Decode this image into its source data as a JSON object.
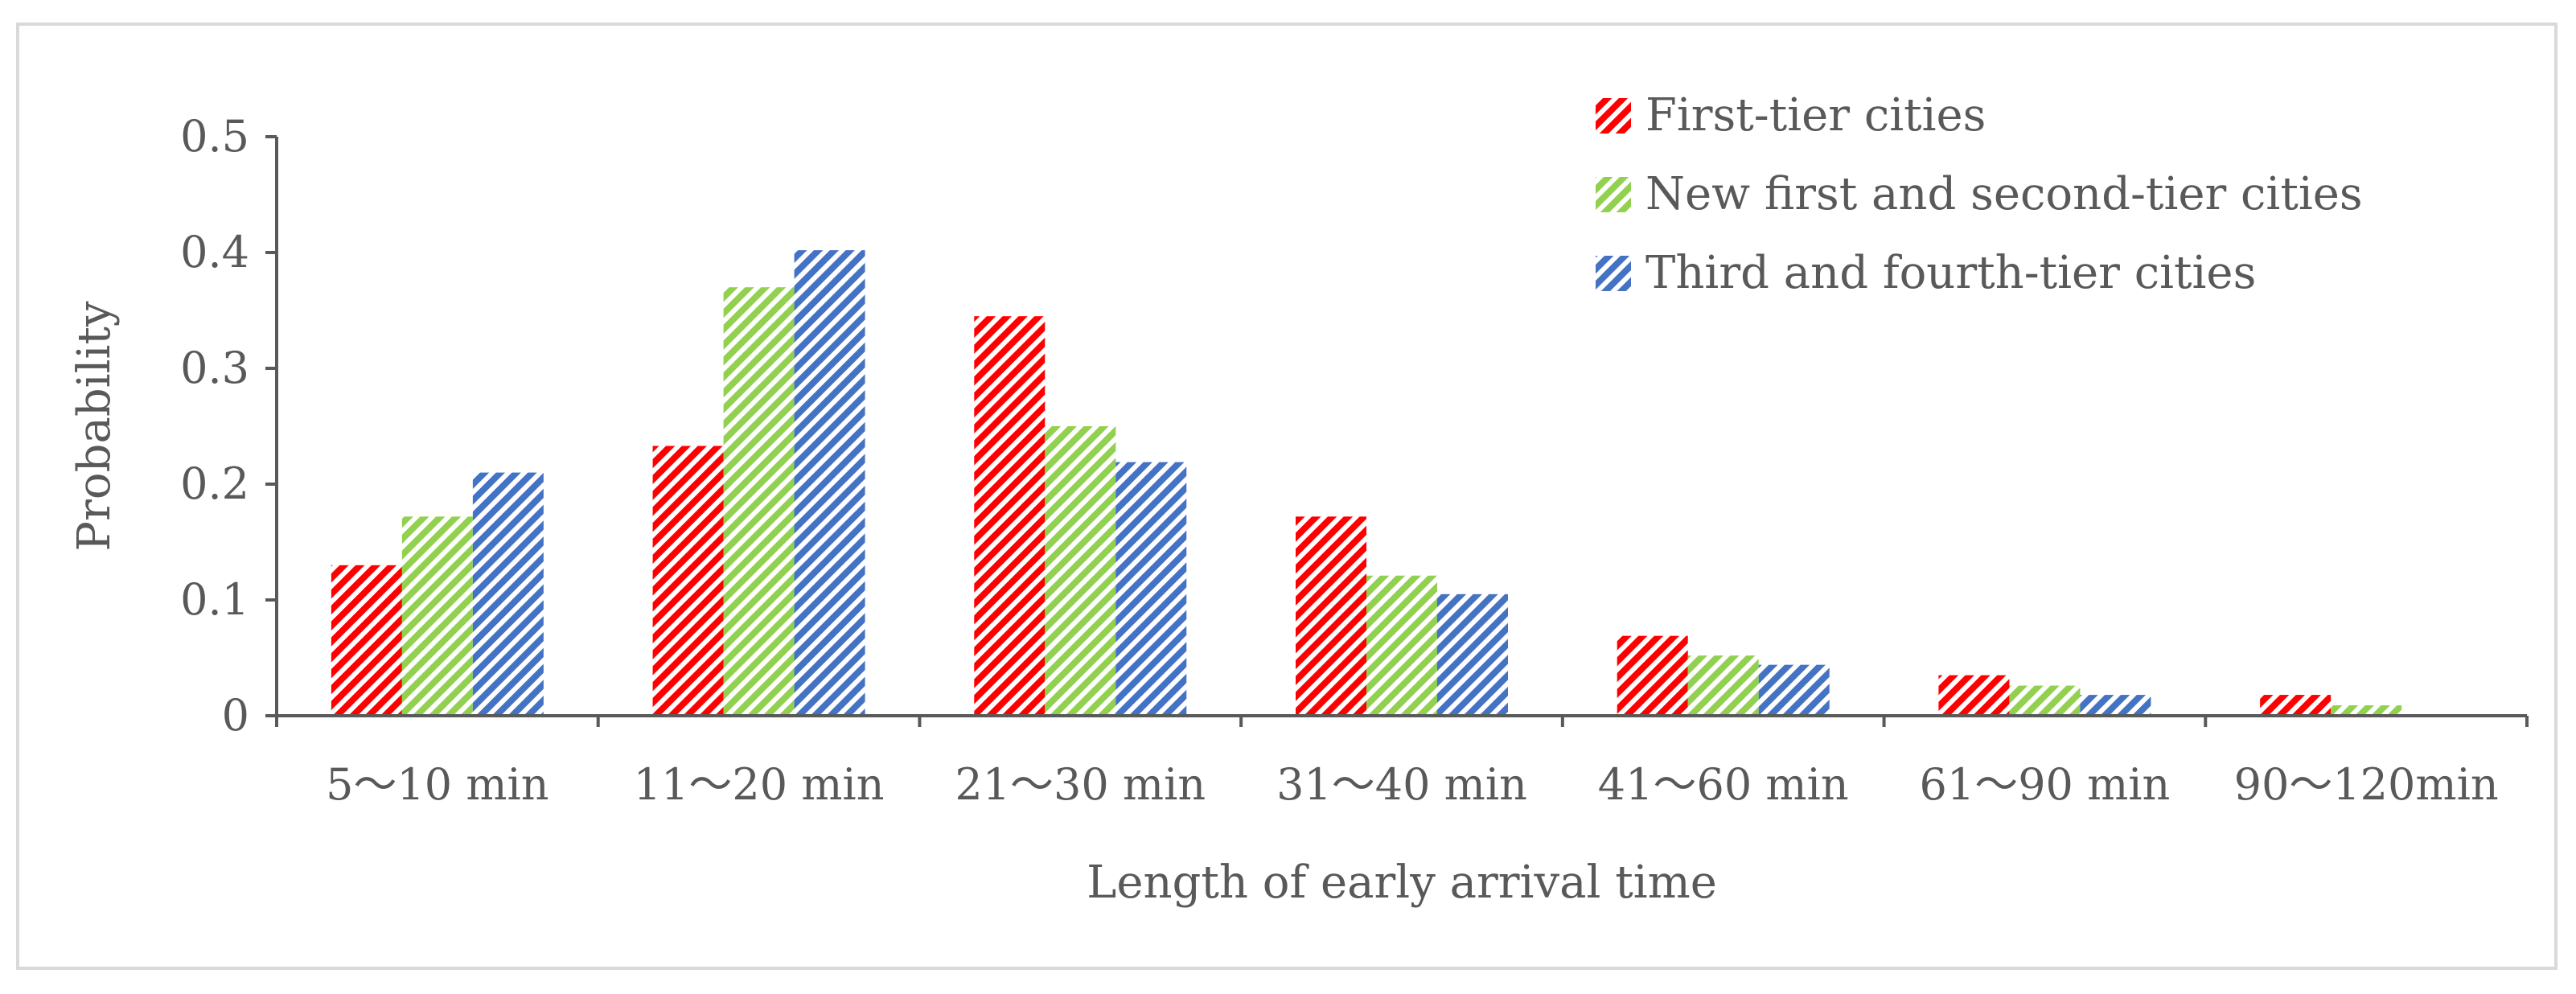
{
  "chart_data": {
    "type": "bar",
    "title": "",
    "xlabel": "Length of early arrival time",
    "ylabel": "Probability",
    "ylim": [
      0,
      0.5
    ],
    "yticks": [
      "0",
      "0.1",
      "0.2",
      "0.3",
      "0.4",
      "0.5"
    ],
    "grid": false,
    "legend_position": "top-right",
    "categories": [
      "5～10 min",
      "11～20 min",
      "21～30 min",
      "31～40 min",
      "41～60 min",
      "61～90 min",
      "90～120min"
    ],
    "series": [
      {
        "name": "First-tier cities",
        "color": "#ff0000",
        "pattern": "diagonal-stripes",
        "values": [
          0.13,
          0.233,
          0.345,
          0.172,
          0.069,
          0.035,
          0.018
        ]
      },
      {
        "name": "New first and second-tier cities",
        "color": "#92d050",
        "pattern": "diagonal-stripes",
        "values": [
          0.172,
          0.37,
          0.25,
          0.121,
          0.052,
          0.026,
          0.009
        ]
      },
      {
        "name": "Third and fourth-tier cities",
        "color": "#4472c4",
        "pattern": "diagonal-stripes",
        "values": [
          0.21,
          0.402,
          0.219,
          0.105,
          0.044,
          0.018,
          0.0
        ]
      }
    ]
  }
}
